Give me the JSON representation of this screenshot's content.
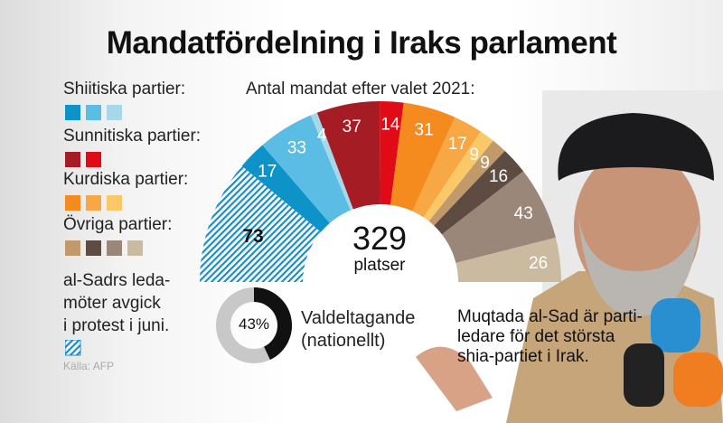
{
  "title": "Mandatfördelning i Iraks parlament",
  "chart_data": {
    "type": "pie",
    "subtitle": "Antal mandat efter valet 2021:",
    "total": 329,
    "total_label": "platser",
    "segments": [
      {
        "value": 73,
        "color": "#1a8fc7",
        "group": "al-Sadr",
        "hatched": true
      },
      {
        "value": 17,
        "color": "#0e93c8",
        "group": "Shiitiska partier"
      },
      {
        "value": 33,
        "color": "#5bbde3",
        "group": "Shiitiska partier"
      },
      {
        "value": 4,
        "color": "#a6d8ea",
        "group": "Shiitiska partier"
      },
      {
        "value": 37,
        "color": "#a51c24",
        "group": "Sunnitiska partier"
      },
      {
        "value": 14,
        "color": "#e10a17",
        "group": "Sunnitiska partier"
      },
      {
        "value": 31,
        "color": "#f58a1f",
        "group": "Kurdiska partier"
      },
      {
        "value": 17,
        "color": "#f7a845",
        "group": "Kurdiska partier"
      },
      {
        "value": 9,
        "color": "#fbc867",
        "group": "Kurdiska partier"
      },
      {
        "value": 9,
        "color": "#c09a6b",
        "group": "Övriga partier"
      },
      {
        "value": 16,
        "color": "#5e4c42",
        "group": "Övriga partier"
      },
      {
        "value": 43,
        "color": "#9b8779",
        "group": "Övriga partier"
      },
      {
        "value": 26,
        "color": "#c9baa0",
        "group": "Övriga partier"
      }
    ],
    "legend": [
      {
        "label": "Shiitiska partier:",
        "colors": [
          "#0e93c8",
          "#5bbde3",
          "#a6d8ea"
        ]
      },
      {
        "label": "Sunnitiska partier:",
        "colors": [
          "#a51c24",
          "#e10a17"
        ]
      },
      {
        "label": "Kurdiska partier:",
        "colors": [
          "#f58a1f",
          "#f7a845",
          "#fbc867"
        ]
      },
      {
        "label": "Övriga partier:",
        "colors": [
          "#c09a6b",
          "#5e4c42",
          "#9b8779",
          "#c9baa0"
        ]
      }
    ],
    "hatch_note": [
      "al-Sadrs leda-",
      "möter avgick",
      "i protest i juni."
    ],
    "turnout": {
      "value": 43,
      "label": "43%",
      "text": [
        "Valdeltagande",
        "(nationellt)"
      ]
    }
  },
  "caption": [
    "Muqtada al-Sad är parti-",
    "ledare för det största",
    "shia-partiet i Irak."
  ],
  "source": "Källa: AFP"
}
